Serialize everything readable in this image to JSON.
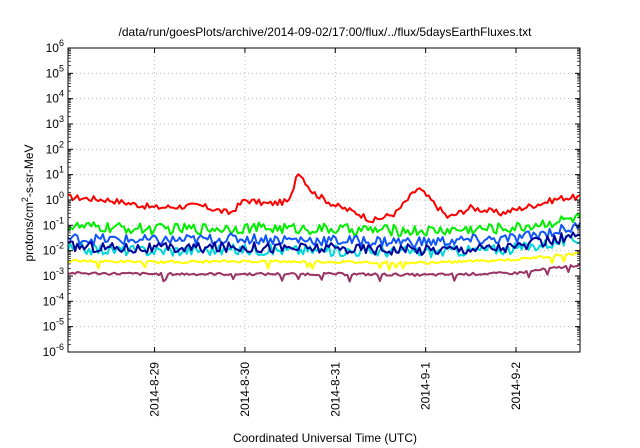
{
  "chart_data": {
    "type": "line",
    "title": "/data/run/goesPlots/archive/2014-09-02/17:00/flux/../flux/5daysEarthFluxes.txt",
    "xlabel": "Coordinated Universal Time (UTC)",
    "ylabel": {
      "base": "protons/cm",
      "sup": "2",
      "rest": "-s-sr-MeV"
    },
    "y_scale": "log",
    "ylim_exp": [
      -6,
      6
    ],
    "ytick_exponents": [
      -6,
      -5,
      -4,
      -3,
      -2,
      -1,
      0,
      1,
      2,
      3,
      4,
      5,
      6
    ],
    "ytick_base": "10",
    "xlim": [
      "2014-08-28 01:00",
      "2014-09-02 17:00"
    ],
    "xticks": [
      {
        "label": "2014-8-29",
        "t": "2014-08-29 00:00"
      },
      {
        "label": "2014-8-30",
        "t": "2014-08-30 00:00"
      },
      {
        "label": "2014-8-31",
        "t": "2014-08-31 00:00"
      },
      {
        "label": "2014-9-1",
        "t": "2014-09-01 00:00"
      },
      {
        "label": "2014-9-2",
        "t": "2014-09-02 00:00"
      }
    ],
    "grid": true,
    "series": [
      {
        "color": "#ff0000",
        "x": [
          "2014-08-28 01:00",
          "2014-08-28 12:00",
          "2014-08-29 00:00",
          "2014-08-29 12:00",
          "2014-08-29 20:00",
          "2014-08-30 00:00",
          "2014-08-30 06:00",
          "2014-08-30 12:00",
          "2014-08-30 14:00",
          "2014-08-30 18:00",
          "2014-08-31 00:00",
          "2014-08-31 06:00",
          "2014-08-31 10:00",
          "2014-08-31 16:00",
          "2014-08-31 22:00",
          "2014-09-01 02:00",
          "2014-09-01 06:00",
          "2014-09-01 12:00",
          "2014-09-01 20:00",
          "2014-09-02 06:00",
          "2014-09-02 12:00",
          "2014-09-02 17:00"
        ],
        "y": [
          1.3,
          1.0,
          0.5,
          0.6,
          0.3,
          1.0,
          0.7,
          0.9,
          15,
          2.0,
          0.6,
          0.3,
          0.15,
          0.3,
          3.0,
          0.8,
          0.2,
          0.5,
          0.3,
          0.7,
          1.2,
          1.3
        ]
      },
      {
        "color": "#00ee00",
        "x": [
          "2014-08-28 01:00",
          "2014-08-29 00:00",
          "2014-08-30 00:00",
          "2014-08-31 00:00",
          "2014-09-01 00:00",
          "2014-09-02 00:00",
          "2014-09-02 17:00"
        ],
        "y": [
          0.09,
          0.07,
          0.08,
          0.07,
          0.06,
          0.08,
          0.2
        ]
      },
      {
        "color": "#00d8d8",
        "x": [
          "2014-08-28 01:00",
          "2014-08-29 00:00",
          "2014-08-30 00:00",
          "2014-08-31 00:00",
          "2014-09-01 00:00",
          "2014-09-02 00:00",
          "2014-09-02 17:00"
        ],
        "y": [
          0.012,
          0.01,
          0.011,
          0.01,
          0.009,
          0.012,
          0.03
        ]
      },
      {
        "color": "#1155ff",
        "x": [
          "2014-08-28 01:00",
          "2014-08-29 00:00",
          "2014-08-30 00:00",
          "2014-08-31 00:00",
          "2014-09-01 00:00",
          "2014-09-02 00:00",
          "2014-09-02 17:00"
        ],
        "y": [
          0.03,
          0.025,
          0.03,
          0.025,
          0.022,
          0.03,
          0.09
        ]
      },
      {
        "color": "#000099",
        "x": [
          "2014-08-28 01:00",
          "2014-08-29 00:00",
          "2014-08-30 00:00",
          "2014-08-31 00:00",
          "2014-09-01 00:00",
          "2014-09-02 00:00",
          "2014-09-02 17:00"
        ],
        "y": [
          0.015,
          0.012,
          0.014,
          0.012,
          0.011,
          0.014,
          0.04
        ]
      },
      {
        "color": "#ffff00",
        "x": [
          "2014-08-28 01:00",
          "2014-08-29 00:00",
          "2014-08-30 00:00",
          "2014-08-31 00:00",
          "2014-09-01 00:00",
          "2014-09-02 00:00",
          "2014-09-02 17:00"
        ],
        "y": [
          0.004,
          0.0035,
          0.0038,
          0.0036,
          0.0033,
          0.0045,
          0.008
        ]
      },
      {
        "color": "#993366",
        "x": [
          "2014-08-28 01:00",
          "2014-08-29 00:00",
          "2014-08-30 00:00",
          "2014-08-31 00:00",
          "2014-09-01 00:00",
          "2014-09-02 00:00",
          "2014-09-02 17:00"
        ],
        "y": [
          0.0013,
          0.0012,
          0.0012,
          0.0012,
          0.0011,
          0.0013,
          0.0028
        ]
      }
    ]
  }
}
